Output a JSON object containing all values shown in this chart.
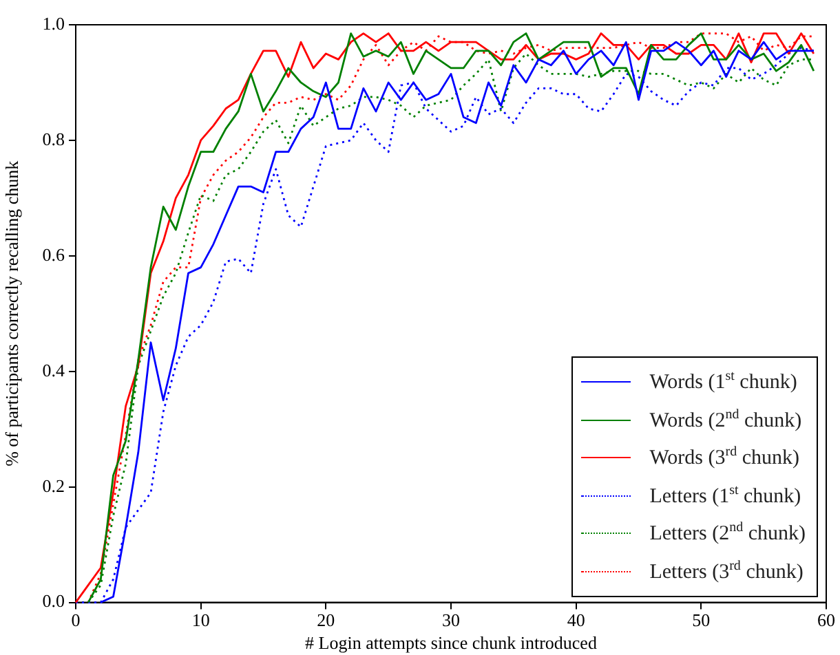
{
  "chart_data": {
    "type": "line",
    "xlabel": "# Login attempts since chunk introduced",
    "ylabel": "% of participants correctly recalling chunk",
    "x": [
      0,
      1,
      2,
      3,
      4,
      5,
      6,
      7,
      8,
      9,
      10,
      11,
      12,
      13,
      14,
      15,
      16,
      17,
      18,
      19,
      20,
      21,
      22,
      23,
      24,
      25,
      26,
      27,
      28,
      29,
      30,
      31,
      32,
      33,
      34,
      35,
      36,
      37,
      38,
      39,
      40,
      41,
      42,
      43,
      44,
      45,
      46,
      47,
      48,
      49,
      50,
      51,
      52,
      53,
      54,
      55,
      56,
      57,
      58,
      59
    ],
    "xlim": [
      0,
      60
    ],
    "xticks": [
      0,
      10,
      20,
      30,
      40,
      50,
      60
    ],
    "ylim": [
      0,
      1
    ],
    "yticks": [
      {
        "value": 0,
        "label": "0.0"
      },
      {
        "value": 0.2,
        "label": "0.2"
      },
      {
        "value": 0.4,
        "label": "0.4"
      },
      {
        "value": 0.6,
        "label": "0.6"
      },
      {
        "value": 0.8,
        "label": "0.8"
      },
      {
        "value": 1,
        "label": "1.0"
      }
    ],
    "grid": false,
    "legend": "bottom right",
    "marker": "none",
    "series": [
      {
        "name": "Words (1$^{st}$ chunk)",
        "color": "#0000ff",
        "line_style": "solid",
        "values": [
          null,
          null,
          0,
          0.01,
          0.13,
          0.26,
          0.45,
          0.35,
          0.44,
          0.57,
          0.58,
          0.62,
          0.67,
          0.72,
          0.72,
          0.71,
          0.78,
          0.78,
          0.82,
          0.84,
          0.9,
          0.82,
          0.82,
          0.89,
          0.85,
          0.9,
          0.87,
          0.9,
          0.87,
          0.88,
          0.915,
          0.84,
          0.83,
          0.9,
          0.86,
          0.93,
          0.9,
          0.94,
          0.93,
          0.955,
          0.915,
          0.94,
          0.955,
          0.93,
          0.97,
          0.87,
          0.955,
          0.955,
          0.97,
          0.955,
          0.93,
          0.955,
          0.91,
          0.955,
          0.94,
          0.97,
          0.94,
          0.955,
          0.955,
          0.955
        ]
      },
      {
        "name": "Words (2$^{nd}$ chunk)",
        "color": "#008000",
        "line_style": "solid",
        "values": [
          null,
          0,
          0.04,
          0.22,
          0.28,
          0.42,
          0.58,
          0.685,
          0.645,
          0.72,
          0.78,
          0.78,
          0.82,
          0.85,
          0.915,
          0.85,
          0.885,
          0.925,
          0.9,
          0.885,
          0.875,
          0.9,
          0.985,
          0.945,
          0.955,
          0.945,
          0.97,
          0.915,
          0.955,
          0.94,
          0.925,
          0.925,
          0.955,
          0.955,
          0.93,
          0.97,
          0.985,
          0.94,
          0.955,
          0.97,
          0.97,
          0.97,
          0.91,
          0.925,
          0.925,
          0.88,
          0.965,
          0.94,
          0.94,
          0.965,
          0.985,
          0.94,
          0.94,
          0.965,
          0.94,
          0.95,
          0.92,
          0.935,
          0.965,
          0.92
        ]
      },
      {
        "name": "Words (3$^{rd}$ chunk)",
        "color": "#ff0000",
        "line_style": "solid",
        "values": [
          0,
          0.03,
          0.06,
          0.19,
          0.34,
          0.41,
          0.57,
          0.625,
          0.7,
          0.74,
          0.8,
          0.825,
          0.855,
          0.87,
          0.915,
          0.955,
          0.955,
          0.91,
          0.97,
          0.925,
          0.95,
          0.94,
          0.97,
          0.985,
          0.97,
          0.985,
          0.955,
          0.955,
          0.97,
          0.955,
          0.97,
          0.97,
          0.97,
          0.955,
          0.94,
          0.94,
          0.965,
          0.94,
          0.95,
          0.95,
          0.94,
          0.95,
          0.985,
          0.965,
          0.965,
          0.94,
          0.965,
          0.965,
          0.95,
          0.95,
          0.965,
          0.965,
          0.94,
          0.985,
          0.935,
          0.985,
          0.985,
          0.95,
          0.985,
          0.95
        ]
      },
      {
        "name": "Letters (1$^{st}$ chunk)",
        "color": "#0000ff",
        "line_style": "dotted",
        "values": [
          0,
          0,
          0,
          0.04,
          0.13,
          0.16,
          0.19,
          0.33,
          0.41,
          0.46,
          0.48,
          0.52,
          0.59,
          0.595,
          0.57,
          0.69,
          0.75,
          0.67,
          0.65,
          0.72,
          0.79,
          0.795,
          0.8,
          0.83,
          0.8,
          0.78,
          0.895,
          0.9,
          0.855,
          0.835,
          0.815,
          0.825,
          0.875,
          0.845,
          0.855,
          0.83,
          0.865,
          0.89,
          0.89,
          0.88,
          0.88,
          0.855,
          0.85,
          0.88,
          0.915,
          0.91,
          0.885,
          0.87,
          0.86,
          0.885,
          0.9,
          0.895,
          0.925,
          0.925,
          0.905,
          0.915,
          0.93,
          0.95,
          0.96,
          0.955
        ]
      },
      {
        "name": "Letters (2$^{nd}$ chunk)",
        "color": "#008000",
        "line_style": "dotted",
        "values": [
          0,
          0,
          0.03,
          0.15,
          0.24,
          0.41,
          0.47,
          0.53,
          0.57,
          0.64,
          0.705,
          0.695,
          0.74,
          0.75,
          0.78,
          0.815,
          0.835,
          0.795,
          0.86,
          0.825,
          0.84,
          0.855,
          0.86,
          0.875,
          0.875,
          0.87,
          0.86,
          0.84,
          0.86,
          0.865,
          0.87,
          0.895,
          0.915,
          0.94,
          0.85,
          0.925,
          0.95,
          0.93,
          0.915,
          0.915,
          0.915,
          0.91,
          0.915,
          0.92,
          0.92,
          0.92,
          0.915,
          0.915,
          0.905,
          0.895,
          0.9,
          0.89,
          0.915,
          0.9,
          0.925,
          0.905,
          0.895,
          0.93,
          0.94,
          0.94
        ]
      },
      {
        "name": "Letters (3$^{rd}$ chunk)",
        "color": "#ff0000",
        "line_style": "dotted",
        "values": [
          0,
          0,
          0.05,
          0.17,
          0.29,
          0.42,
          0.48,
          0.555,
          0.58,
          0.58,
          0.7,
          0.74,
          0.765,
          0.78,
          0.805,
          0.84,
          0.865,
          0.865,
          0.875,
          0.87,
          0.88,
          0.87,
          0.895,
          0.94,
          0.965,
          0.93,
          0.955,
          0.97,
          0.955,
          0.98,
          0.97,
          0.97,
          0.955,
          0.95,
          0.955,
          0.95,
          0.96,
          0.965,
          0.955,
          0.96,
          0.96,
          0.96,
          0.96,
          0.96,
          0.965,
          0.97,
          0.96,
          0.96,
          0.97,
          0.97,
          0.985,
          0.985,
          0.985,
          0.97,
          0.98,
          0.955,
          0.965,
          0.96,
          0.98,
          0.98
        ]
      }
    ]
  }
}
